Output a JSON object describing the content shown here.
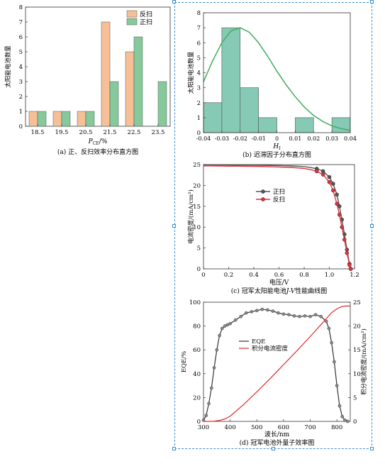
{
  "chart_data": [
    {
      "id": "a",
      "type": "bar",
      "caption": "(a) 正、反扫效率分布直方图",
      "ylabel": "太阳能电池数量",
      "xlabel_main": "P",
      "xlabel_sub": "CE",
      "xlabel_tail": "/%",
      "categories": [
        "18.5",
        "19.5",
        "20.5",
        "21.5",
        "22.5",
        "23.5"
      ],
      "ylim": [
        0,
        8
      ],
      "yticks": [
        "0",
        "1",
        "2",
        "3",
        "4",
        "5",
        "6",
        "7",
        "8"
      ],
      "legend_position": "top-right",
      "series": [
        {
          "name": "反扫",
          "color": "#f6bf95",
          "values": [
            1,
            1,
            1,
            7,
            5,
            0
          ]
        },
        {
          "name": "正扫",
          "color": "#86c99b",
          "values": [
            1,
            1,
            1,
            3,
            6,
            3
          ]
        }
      ]
    },
    {
      "id": "b",
      "type": "bar",
      "caption": "(b) 迟滞因子分布直方图",
      "ylabel": "太阳能电池数量",
      "xlabel_main": "H",
      "xlabel_sub": "I",
      "xlim": [
        -0.04,
        0.04
      ],
      "ylim": [
        0,
        8
      ],
      "xticks": [
        "-0.04",
        "-0.03",
        "-0.02",
        "-0.01",
        "0",
        "0.01",
        "0.02",
        "0.03",
        "0.04"
      ],
      "yticks": [
        "0",
        "1",
        "2",
        "3",
        "4",
        "5",
        "6",
        "7",
        "8"
      ],
      "bar_color": "#86c9b5",
      "curve_color": "#4caf66",
      "bins": [
        {
          "x0": -0.04,
          "x1": -0.03,
          "count": 2
        },
        {
          "x0": -0.03,
          "x1": -0.02,
          "count": 7
        },
        {
          "x0": -0.02,
          "x1": -0.01,
          "count": 3
        },
        {
          "x0": -0.01,
          "x1": 0.0,
          "count": 1
        },
        {
          "x0": 0.0,
          "x1": 0.01,
          "count": 0
        },
        {
          "x0": 0.01,
          "x1": 0.02,
          "count": 1
        },
        {
          "x0": 0.02,
          "x1": 0.03,
          "count": 0
        },
        {
          "x0": 0.03,
          "x1": 0.04,
          "count": 1
        }
      ],
      "fit_curve": {
        "x": [
          -0.04,
          -0.035,
          -0.03,
          -0.025,
          -0.02,
          -0.015,
          -0.01,
          -0.005,
          0,
          0.005,
          0.01,
          0.015,
          0.02,
          0.025,
          0.03,
          0.035,
          0.04
        ],
        "y": [
          3.4,
          4.8,
          6.0,
          6.8,
          7.0,
          6.7,
          6.0,
          5.1,
          4.1,
          3.2,
          2.4,
          1.7,
          1.15,
          0.75,
          0.45,
          0.27,
          0.15
        ]
      }
    },
    {
      "id": "c",
      "type": "line",
      "caption_pre": "(c) 冠军太阳能电池",
      "caption_italic": "J-V",
      "caption_post": "性能曲线图",
      "ylabel": "电流密度/(mA/cm²)",
      "xlabel": "电压/V",
      "xlim": [
        0,
        1.2
      ],
      "ylim": [
        0,
        25
      ],
      "xticks": [
        "0",
        "0.2",
        "0.4",
        "0.6",
        "0.8",
        "1.0",
        "1.2"
      ],
      "yticks": [
        "0",
        "5",
        "10",
        "15",
        "20",
        "25"
      ],
      "legend_position": "center",
      "series": [
        {
          "name": "正扫",
          "color": "#555555",
          "x": [
            0,
            0.05,
            0.1,
            0.15,
            0.2,
            0.25,
            0.3,
            0.35,
            0.4,
            0.45,
            0.5,
            0.55,
            0.6,
            0.65,
            0.7,
            0.75,
            0.8,
            0.85,
            0.9,
            0.95,
            1.0,
            1.03,
            1.06,
            1.08,
            1.1,
            1.12,
            1.14,
            1.16,
            1.17
          ],
          "y": [
            24.9,
            24.9,
            24.9,
            24.9,
            24.88,
            24.87,
            24.86,
            24.85,
            24.84,
            24.82,
            24.8,
            24.78,
            24.76,
            24.72,
            24.68,
            24.6,
            24.5,
            24.3,
            24.0,
            23.4,
            22.0,
            20.4,
            17.8,
            15.0,
            11.8,
            8.3,
            4.6,
            1.2,
            0
          ]
        },
        {
          "name": "反扫",
          "color": "#e0323c",
          "x": [
            0,
            0.05,
            0.1,
            0.15,
            0.2,
            0.25,
            0.3,
            0.35,
            0.4,
            0.45,
            0.5,
            0.55,
            0.6,
            0.65,
            0.7,
            0.75,
            0.8,
            0.85,
            0.9,
            0.95,
            1.0,
            1.03,
            1.06,
            1.08,
            1.1,
            1.12,
            1.14,
            1.16,
            1.17
          ],
          "y": [
            24.7,
            24.7,
            24.68,
            24.66,
            24.64,
            24.62,
            24.6,
            24.58,
            24.56,
            24.54,
            24.5,
            24.46,
            24.42,
            24.36,
            24.3,
            24.2,
            24.05,
            23.8,
            23.4,
            22.6,
            20.8,
            18.8,
            15.6,
            13.0,
            10.0,
            7.0,
            3.8,
            0.9,
            0
          ]
        }
      ]
    },
    {
      "id": "d",
      "type": "line",
      "caption": "(d) 冠军电池外量子效率图",
      "ylabel_left": "EQE/%",
      "ylabel_right": "积分电流密度/(mA/cm²)",
      "xlabel": "波长/nm",
      "xlim": [
        300,
        850
      ],
      "ylim_left": [
        0,
        100
      ],
      "ylim_right": [
        0,
        25
      ],
      "xticks": [
        "300",
        "400",
        "500",
        "600",
        "700",
        "800"
      ],
      "yticks_left": [
        "0",
        "20",
        "40",
        "60",
        "80",
        "100"
      ],
      "yticks_right": [
        "0",
        "5",
        "10",
        "15",
        "20",
        "25"
      ],
      "series": [
        {
          "name": "EQE",
          "color": "#333333",
          "axis": "left",
          "x": [
            300,
            310,
            320,
            330,
            340,
            350,
            360,
            370,
            380,
            390,
            400,
            420,
            440,
            460,
            480,
            500,
            520,
            540,
            560,
            580,
            600,
            620,
            640,
            660,
            680,
            700,
            720,
            740,
            760,
            770,
            780,
            790,
            800,
            810,
            820,
            830,
            840
          ],
          "y": [
            1,
            5,
            15,
            28,
            45,
            60,
            72,
            78,
            80,
            81,
            82,
            85,
            88,
            91,
            92,
            93,
            94,
            93.5,
            92.5,
            91,
            90,
            89.5,
            88.5,
            88,
            88.5,
            88,
            89.5,
            88,
            84,
            78,
            66,
            50,
            30,
            13,
            4,
            1,
            0
          ]
        },
        {
          "name": "积分电流密度",
          "color": "#e02a2a",
          "axis": "right",
          "x": [
            300,
            320,
            340,
            360,
            380,
            400,
            450,
            500,
            550,
            600,
            650,
            700,
            750,
            780,
            800,
            810,
            820,
            830,
            840,
            850
          ],
          "y": [
            0,
            0,
            0.05,
            0.2,
            0.5,
            1.1,
            3.5,
            6.2,
            9.0,
            11.9,
            14.8,
            17.8,
            20.9,
            22.8,
            23.6,
            23.9,
            24.1,
            24.2,
            24.2,
            24.2
          ]
        }
      ]
    }
  ]
}
